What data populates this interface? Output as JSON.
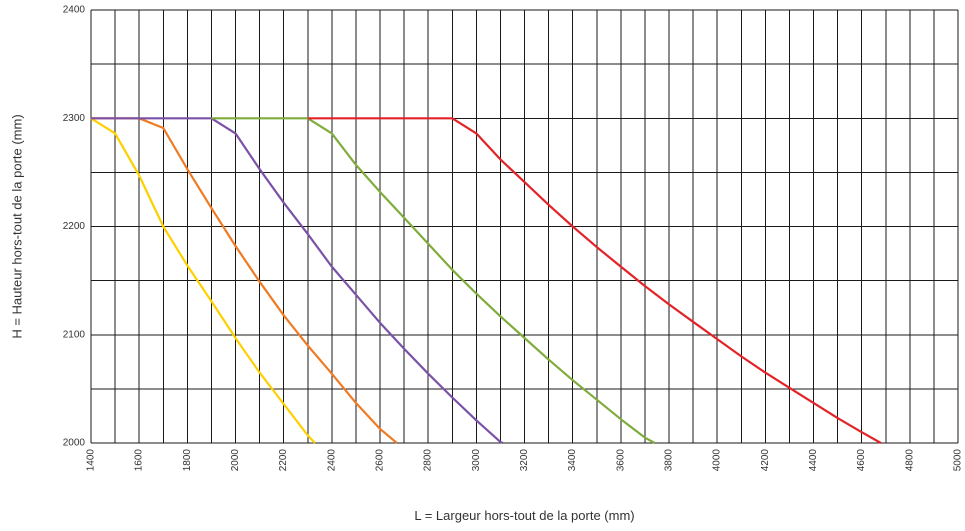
{
  "chart_data": {
    "type": "line",
    "title": "",
    "xlabel": "L = Largeur hors-tout de la porte (mm)",
    "ylabel": "H = Hauteur hors-tout de la porte (mm)",
    "xlim": [
      1400,
      5000
    ],
    "ylim": [
      2000,
      2400
    ],
    "x_ticks": [
      1400,
      1600,
      1800,
      2000,
      2200,
      2400,
      2600,
      2800,
      3000,
      3200,
      3400,
      3600,
      3800,
      4000,
      4200,
      4400,
      4600,
      4800,
      5000
    ],
    "y_ticks": [
      2000,
      2100,
      2200,
      2300,
      2400
    ],
    "x_minor_step": 100,
    "y_minor_step": 50,
    "grid": true,
    "series": [
      {
        "color": "#ffd000",
        "points": [
          [
            1400,
            2300
          ],
          [
            1500,
            2286
          ],
          [
            1600,
            2247
          ],
          [
            1700,
            2200
          ],
          [
            1800,
            2164
          ],
          [
            1900,
            2131
          ],
          [
            2000,
            2097
          ],
          [
            2100,
            2065
          ],
          [
            2200,
            2036
          ],
          [
            2300,
            2007
          ],
          [
            2330,
            2000
          ]
        ]
      },
      {
        "color": "#f07b22",
        "points": [
          [
            1400,
            2300
          ],
          [
            1600,
            2300
          ],
          [
            1700,
            2291
          ],
          [
            1800,
            2253
          ],
          [
            1900,
            2217
          ],
          [
            2000,
            2182
          ],
          [
            2100,
            2149
          ],
          [
            2200,
            2118
          ],
          [
            2300,
            2090
          ],
          [
            2400,
            2064
          ],
          [
            2500,
            2037
          ],
          [
            2600,
            2013
          ],
          [
            2670,
            2000
          ]
        ]
      },
      {
        "color": "#7b52a8",
        "points": [
          [
            1400,
            2300
          ],
          [
            1900,
            2300
          ],
          [
            2000,
            2286
          ],
          [
            2100,
            2253
          ],
          [
            2200,
            2222
          ],
          [
            2300,
            2193
          ],
          [
            2400,
            2163
          ],
          [
            2500,
            2137
          ],
          [
            2600,
            2111
          ],
          [
            2700,
            2087
          ],
          [
            2800,
            2064
          ],
          [
            2900,
            2042
          ],
          [
            3000,
            2021
          ],
          [
            3100,
            2001
          ],
          [
            3110,
            2000
          ]
        ]
      },
      {
        "color": "#7fac3c",
        "points": [
          [
            1900,
            2300
          ],
          [
            2300,
            2300
          ],
          [
            2400,
            2286
          ],
          [
            2500,
            2257
          ],
          [
            2600,
            2232
          ],
          [
            2700,
            2208
          ],
          [
            2800,
            2184
          ],
          [
            2900,
            2160
          ],
          [
            3000,
            2138
          ],
          [
            3100,
            2117
          ],
          [
            3200,
            2097
          ],
          [
            3300,
            2077
          ],
          [
            3400,
            2058
          ],
          [
            3500,
            2040
          ],
          [
            3600,
            2022
          ],
          [
            3700,
            2005
          ],
          [
            3740,
            2000
          ]
        ]
      },
      {
        "color": "#e32328",
        "points": [
          [
            2300,
            2300
          ],
          [
            2900,
            2300
          ],
          [
            3000,
            2286
          ],
          [
            3100,
            2262
          ],
          [
            3200,
            2241
          ],
          [
            3300,
            2220
          ],
          [
            3400,
            2200
          ],
          [
            3500,
            2181
          ],
          [
            3600,
            2163
          ],
          [
            3700,
            2145
          ],
          [
            3800,
            2128
          ],
          [
            3900,
            2112
          ],
          [
            4000,
            2096
          ],
          [
            4100,
            2080
          ],
          [
            4200,
            2065
          ],
          [
            4300,
            2051
          ],
          [
            4400,
            2037
          ],
          [
            4500,
            2023
          ],
          [
            4600,
            2010
          ],
          [
            4680,
            2000
          ]
        ]
      }
    ]
  }
}
